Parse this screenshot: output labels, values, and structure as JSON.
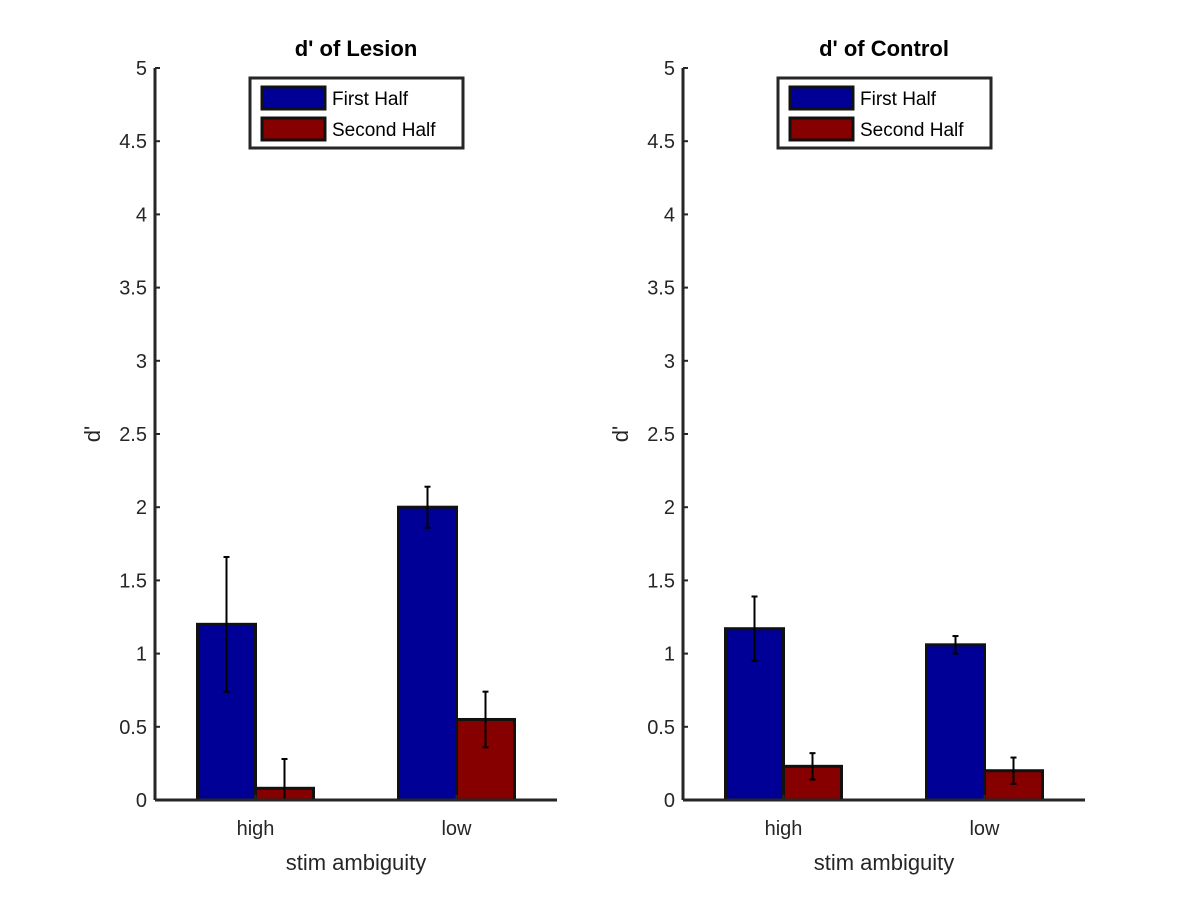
{
  "chart_data": [
    {
      "type": "bar",
      "title": "d' of Lesion",
      "xlabel": "stim ambiguity",
      "ylabel": "d'",
      "categories": [
        "high",
        "low"
      ],
      "ylim": [
        0,
        5
      ],
      "yticks": [
        0,
        0.5,
        1,
        1.5,
        2,
        2.5,
        3,
        3.5,
        4,
        4.5,
        5
      ],
      "ytick_labels": [
        "0",
        "0.5",
        "1",
        "1.5",
        "2",
        "2.5",
        "3",
        "3.5",
        "4",
        "4.5",
        "5"
      ],
      "legend_position": "top-center",
      "grid": false,
      "series": [
        {
          "name": "First Half",
          "color": "#000096",
          "values": [
            1.2,
            2.0
          ],
          "error": [
            0.46,
            0.14
          ]
        },
        {
          "name": "Second Half",
          "color": "#870000",
          "values": [
            0.08,
            0.55
          ],
          "error": [
            0.2,
            0.19
          ]
        }
      ]
    },
    {
      "type": "bar",
      "title": "d' of Control",
      "xlabel": "stim ambiguity",
      "ylabel": "d'",
      "categories": [
        "high",
        "low"
      ],
      "ylim": [
        0,
        5
      ],
      "yticks": [
        0,
        0.5,
        1,
        1.5,
        2,
        2.5,
        3,
        3.5,
        4,
        4.5,
        5
      ],
      "ytick_labels": [
        "0",
        "0.5",
        "1",
        "1.5",
        "2",
        "2.5",
        "3",
        "3.5",
        "4",
        "4.5",
        "5"
      ],
      "legend_position": "top-center",
      "grid": false,
      "series": [
        {
          "name": "First Half",
          "color": "#000096",
          "values": [
            1.17,
            1.06
          ],
          "error": [
            0.22,
            0.06
          ]
        },
        {
          "name": "Second Half",
          "color": "#870000",
          "values": [
            0.23,
            0.2
          ],
          "error": [
            0.09,
            0.09
          ]
        }
      ]
    }
  ]
}
